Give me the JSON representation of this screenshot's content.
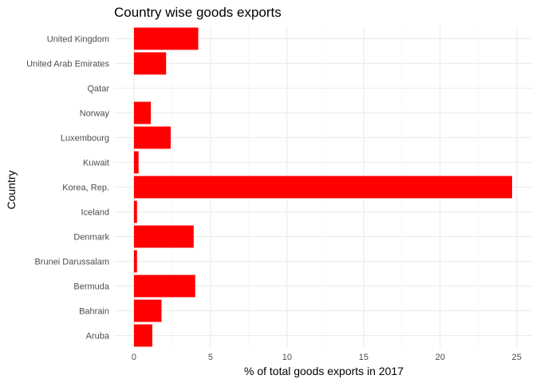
{
  "chart_data": {
    "type": "bar",
    "orientation": "horizontal",
    "title": "Country wise goods exports",
    "xlabel": "% of total goods exports in 2017",
    "ylabel": "Country",
    "bar_color": "#ff0000",
    "xlim": [
      -1.3,
      26
    ],
    "xticks": [
      0,
      5,
      10,
      15,
      20,
      25
    ],
    "grid": true,
    "legend": "none",
    "categories": [
      "United Kingdom",
      "United Arab Emirates",
      "Qatar",
      "Norway",
      "Luxembourg",
      "Kuwait",
      "Korea, Rep.",
      "Iceland",
      "Denmark",
      "Brunei Darussalam",
      "Bermuda",
      "Bahrain",
      "Aruba"
    ],
    "values": [
      4.2,
      2.1,
      0.0,
      1.1,
      2.4,
      0.3,
      24.7,
      0.2,
      3.9,
      0.2,
      4.0,
      1.8,
      1.2
    ]
  }
}
